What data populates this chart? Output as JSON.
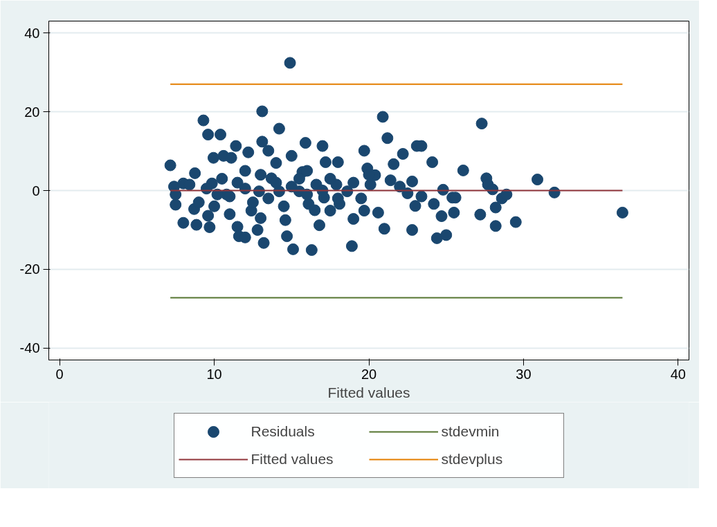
{
  "chart_data": {
    "type": "scatter",
    "xlabel": "Fitted values",
    "xlim": [
      -0.7,
      40.7
    ],
    "ylim": [
      -43,
      43
    ],
    "xticks": [
      0,
      10,
      20,
      30,
      40
    ],
    "yticks": [
      -40,
      -20,
      0,
      20,
      40
    ],
    "grid": "y",
    "legend": "bottom",
    "series": [
      {
        "name": "Residuals",
        "marker": "circle",
        "color": "#1a476f",
        "x": [
          7.16,
          7.4,
          7.5,
          7.5,
          8.0,
          8.4,
          8.0,
          8.75,
          8.7,
          8.85,
          9.3,
          9.6,
          10.4,
          9.6,
          9.85,
          9.95,
          9.7,
          10.6,
          10.8,
          11.1,
          11.4,
          11.5,
          11.6,
          12.0,
          12.2,
          12.4,
          12.8,
          13.1,
          13.1,
          13.2,
          12.9,
          13.5,
          13.7,
          14.2,
          14.2,
          14.6,
          14.7,
          14.9,
          15.0,
          15.1,
          15.5,
          15.7,
          15.9,
          16.1,
          16.3,
          16.6,
          16.8,
          17.0,
          17.1,
          17.2,
          17.5,
          17.9,
          18.0,
          18.1,
          18.6,
          18.9,
          19.0,
          19.7,
          19.7,
          19.9,
          20.1,
          20.4,
          20.6,
          20.9,
          21.0,
          21.2,
          21.4,
          21.6,
          22.0,
          22.2,
          22.5,
          22.8,
          22.8,
          23.0,
          23.1,
          23.4,
          23.4,
          24.1,
          24.2,
          24.4,
          24.7,
          24.8,
          25.0,
          25.4,
          25.5,
          25.6,
          26.1,
          27.2,
          27.3,
          27.6,
          27.7,
          28.0,
          28.2,
          28.2,
          28.6,
          28.9,
          29.5,
          30.9,
          32.0,
          36.4,
          11.0,
          11.5,
          12.0,
          12.5,
          13.0,
          13.5,
          14.0,
          14.5,
          15.0,
          15.5,
          16.0,
          16.5,
          17.0,
          17.5,
          18.0,
          10.0,
          10.5,
          11.0,
          12.0,
          13.0,
          14.0,
          16.0,
          19.0,
          19.5,
          20.0,
          9.0,
          9.5,
          10.2
        ],
        "values": [
          6.4,
          1.0,
          -3.6,
          -1.0,
          1.8,
          1.5,
          -8.2,
          4.4,
          -4.7,
          -8.7,
          17.8,
          14.2,
          14.2,
          -6.4,
          1.8,
          8.3,
          -9.3,
          8.8,
          -1.0,
          8.3,
          11.3,
          -9.2,
          -11.6,
          -11.9,
          9.7,
          -5.1,
          -10.0,
          20.1,
          12.4,
          -13.3,
          -0.2,
          10.1,
          3.1,
          15.7,
          -0.2,
          -7.5,
          -11.6,
          32.4,
          8.8,
          -14.9,
          -0.2,
          4.7,
          12.1,
          -3.4,
          -15.1,
          1.5,
          -8.8,
          11.3,
          -1.8,
          7.2,
          -5.1,
          1.5,
          7.2,
          -3.4,
          -0.2,
          -14.1,
          -7.2,
          10.1,
          -5.1,
          5.6,
          1.5,
          3.9,
          -5.6,
          18.7,
          -9.7,
          13.3,
          2.6,
          6.7,
          1.0,
          9.3,
          -0.7,
          2.3,
          -10.0,
          -3.9,
          11.3,
          11.3,
          -1.5,
          7.2,
          -3.4,
          -12.1,
          -6.5,
          0.2,
          -11.3,
          -1.8,
          -5.6,
          -1.8,
          5.1,
          -6.1,
          17.0,
          3.1,
          1.5,
          0.3,
          -4.3,
          -9.0,
          -2.0,
          -1.0,
          -8.0,
          2.8,
          -0.5,
          -5.6,
          -1.5,
          2.0,
          0.5,
          -3.0,
          4.0,
          -2.0,
          2.0,
          -4.0,
          1.0,
          3.0,
          -1.0,
          -5.0,
          0.0,
          3.0,
          -2.0,
          -4.0,
          3.0,
          -6.0,
          5.0,
          -7.0,
          7.0,
          5.0,
          2.0,
          -2.0,
          4.0,
          -3.0,
          0.5,
          -1.0
        ]
      },
      {
        "name": "Fitted values",
        "type": "line",
        "marker": "none",
        "line_style": "solid",
        "color": "#90353b",
        "x": [
          7.16,
          36.4
        ],
        "values": [
          0,
          0
        ]
      },
      {
        "name": "stdevmin",
        "type": "line",
        "marker": "none",
        "line_style": "solid",
        "color": "#55752f",
        "x": [
          7.16,
          36.4
        ],
        "values": [
          -27.2,
          -27.2
        ]
      },
      {
        "name": "stdevplus",
        "type": "line",
        "marker": "none",
        "line_style": "solid",
        "color": "#e37e00",
        "x": [
          7.16,
          36.4
        ],
        "values": [
          27.0,
          27.0
        ]
      }
    ]
  }
}
